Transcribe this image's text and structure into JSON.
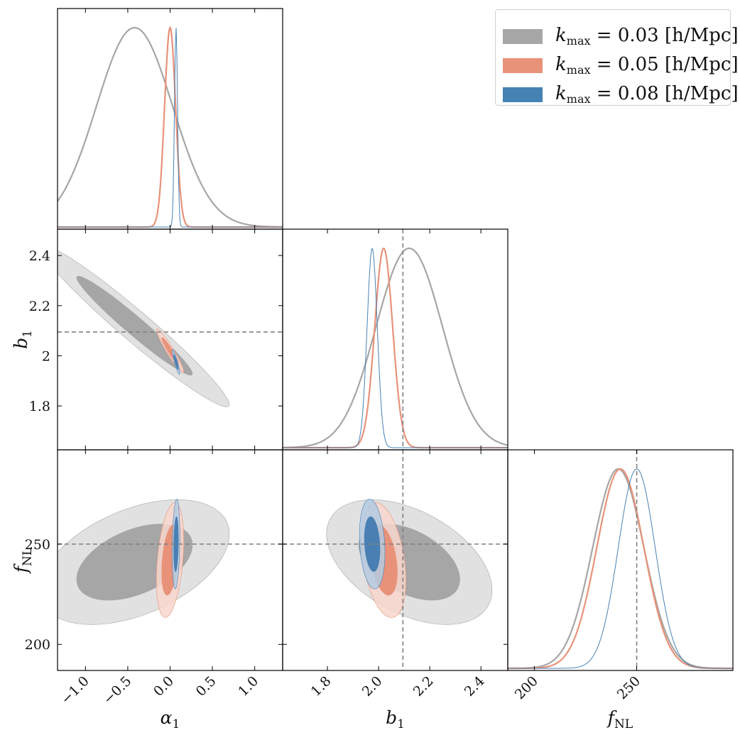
{
  "chart_data": {
    "type": "corner",
    "parameters": [
      {
        "symbol": "α",
        "subscript": "1",
        "range": [
          -1.33,
          1.33
        ],
        "ticks": [
          -1.0,
          -0.5,
          0.0,
          0.5,
          1.0
        ],
        "tick_labels": [
          "−1.0",
          "−0.5",
          "0.0",
          "0.5",
          "1.0"
        ],
        "truth": null
      },
      {
        "symbol": "b",
        "subscript": "1",
        "range": [
          1.625,
          2.505
        ],
        "ticks": [
          1.8,
          2.0,
          2.2,
          2.4
        ],
        "tick_labels": [
          "1.8",
          "2",
          "2.2",
          "2.4"
        ],
        "x_tick_labels": [
          "1.8",
          "2.0",
          "2.2",
          "2.4"
        ],
        "truth": 2.095
      },
      {
        "symbol": "f",
        "subscript": "NL",
        "range": [
          187,
          297
        ],
        "ticks": [
          200,
          250
        ],
        "tick_labels": [
          "200",
          "250"
        ],
        "truth": 250
      }
    ],
    "series": [
      {
        "name": "k_max = 0.03 [h/Mpc]",
        "color": "#a6a6a6",
        "fill": "#a6a6a6",
        "fill_light": "#dcdcdc",
        "marginal_width": 2.2,
        "mean": [
          -0.42,
          2.12,
          241
        ],
        "sigma": [
          0.45,
          0.13,
          12.5
        ],
        "corr": {
          "1,0": -0.97,
          "2,0": 0.45,
          "2,1": -0.45
        }
      },
      {
        "name": "k_max = 0.05 [h/Mpc]",
        "color": "#e8927a",
        "fill": "#e8927a",
        "fill_light": "#f8d6cb",
        "marginal_width": 2.2,
        "mean": [
          0.0,
          2.02,
          242
        ],
        "sigma": [
          0.065,
          0.035,
          11.5
        ],
        "corr": {
          "1,0": -0.95,
          "2,0": 0.35,
          "2,1": -0.35
        }
      },
      {
        "name": "k_max = 0.08 [h/Mpc]",
        "color": "#4682b4",
        "fill": "#4a7fb3",
        "fill_light": "#b3cbe2",
        "marginal_width": 1.0,
        "mean": [
          0.07,
          1.975,
          250
        ],
        "sigma": [
          0.018,
          0.02,
          9.0
        ],
        "corr": {
          "1,0": -0.9,
          "2,0": 0.2,
          "2,1": -0.2
        }
      }
    ],
    "legend": {
      "position": "top-right",
      "entries": [
        {
          "prefix": "k",
          "sub": "max",
          "text": " = 0.03 [h/Mpc]",
          "color": "#a6a6a6"
        },
        {
          "prefix": "k",
          "sub": "max",
          "text": " = 0.05 [h/Mpc]",
          "color": "#e8927a"
        },
        {
          "prefix": "k",
          "sub": "max",
          "text": " = 0.08 [h/Mpc]",
          "color": "#4682b4"
        }
      ]
    },
    "axis_labels": {
      "x": [
        {
          "sym": "α",
          "sub": "1"
        },
        {
          "sym": "b",
          "sub": "1"
        },
        {
          "sym": "f",
          "sub": "NL"
        }
      ],
      "y": [
        {
          "sym": "b",
          "sub": "1"
        },
        {
          "sym": "f",
          "sub": "NL"
        }
      ]
    },
    "truth_line_color": "#808080"
  }
}
